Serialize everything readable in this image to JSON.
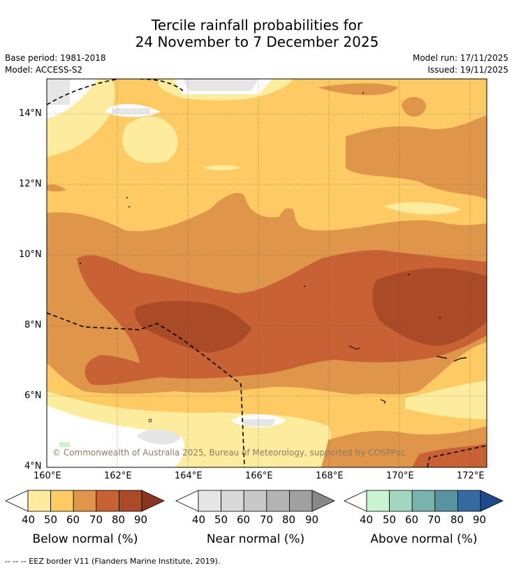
{
  "title": {
    "line1": "Tercile rainfall probabilities for",
    "line2": "24 November to 7 December 2025"
  },
  "meta": {
    "base_period": "Base period: 1981-2018",
    "model": "Model: ACCESS-S2",
    "model_run": "Model run: 17/11/2025",
    "issued": "Issued: 19/11/2025"
  },
  "map": {
    "lat_labels": [
      "14°N",
      "12°N",
      "10°N",
      "8°N",
      "6°N",
      "4°N"
    ],
    "lon_labels": [
      "160°E",
      "162°E",
      "164°E",
      "166°E",
      "168°E",
      "170°E",
      "172°E"
    ],
    "copyright": "© Commonwealth of Australia 2025, Bureau of Meteorology, supported by COSPPac"
  },
  "legends": [
    {
      "title": "Below normal (%)",
      "ticks": [
        "40",
        "50",
        "60",
        "70",
        "80",
        "90"
      ],
      "colors": [
        "#ffffff",
        "#feec9e",
        "#fdca63",
        "#e0964a",
        "#c86234",
        "#ab4a26",
        "#8a3520"
      ]
    },
    {
      "title": "Near normal (%)",
      "ticks": [
        "40",
        "50",
        "60",
        "70",
        "80",
        "90"
      ],
      "colors": [
        "#ffffff",
        "#e6e6e6",
        "#d9d9d9",
        "#c8c8c8",
        "#b3b3b3",
        "#a0a0a0",
        "#888888"
      ]
    },
    {
      "title": "Above normal (%)",
      "ticks": [
        "40",
        "50",
        "60",
        "70",
        "80",
        "90"
      ],
      "colors": [
        "#ffffff",
        "#c8f5cf",
        "#a2d6bf",
        "#78b4ae",
        "#5893a2",
        "#346aa0",
        "#1c4a8a"
      ]
    }
  ],
  "footer": "--  --  -- EEZ border V11 (Flanders Marine Institute, 2019)."
}
